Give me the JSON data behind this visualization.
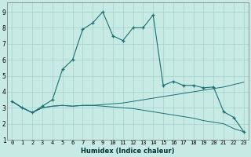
{
  "xlabel": "Humidex (Indice chaleur)",
  "background_color": "#c8eae5",
  "grid_color": "#a8d5d0",
  "line_color": "#1a7070",
  "xlim": [
    -0.5,
    23.5
  ],
  "ylim": [
    1,
    9.6
  ],
  "xticks": [
    0,
    1,
    2,
    3,
    4,
    5,
    6,
    7,
    8,
    9,
    10,
    11,
    12,
    13,
    14,
    15,
    16,
    17,
    18,
    19,
    20,
    21,
    22,
    23
  ],
  "yticks": [
    1,
    2,
    3,
    4,
    5,
    6,
    7,
    8,
    9
  ],
  "main_x": [
    0,
    1,
    2,
    3,
    4,
    5,
    6,
    7,
    8,
    9,
    10,
    11,
    12,
    13,
    14,
    15,
    16,
    17,
    18,
    19,
    20,
    21,
    22,
    23
  ],
  "main_y": [
    3.4,
    3.0,
    2.7,
    3.1,
    3.5,
    5.4,
    6.0,
    7.9,
    8.3,
    9.0,
    7.5,
    7.2,
    8.0,
    8.0,
    8.8,
    4.4,
    4.65,
    4.4,
    4.4,
    4.25,
    4.3,
    2.75,
    2.4,
    1.5
  ],
  "line_up_x": [
    0,
    1,
    2,
    3,
    4,
    5,
    6,
    7,
    8,
    9,
    10,
    11,
    12,
    13,
    14,
    15,
    16,
    17,
    18,
    19,
    20,
    21,
    22,
    23
  ],
  "line_up_y": [
    3.4,
    3.0,
    2.7,
    3.0,
    3.1,
    3.15,
    3.1,
    3.15,
    3.15,
    3.2,
    3.25,
    3.3,
    3.4,
    3.5,
    3.6,
    3.7,
    3.8,
    3.9,
    4.0,
    4.1,
    4.2,
    4.3,
    4.45,
    4.6
  ],
  "line_down_x": [
    0,
    1,
    2,
    3,
    4,
    5,
    6,
    7,
    8,
    9,
    10,
    11,
    12,
    13,
    14,
    15,
    16,
    17,
    18,
    19,
    20,
    21,
    22,
    23
  ],
  "line_down_y": [
    3.4,
    3.0,
    2.7,
    3.0,
    3.1,
    3.15,
    3.1,
    3.15,
    3.15,
    3.1,
    3.05,
    3.0,
    2.95,
    2.85,
    2.75,
    2.65,
    2.55,
    2.45,
    2.35,
    2.2,
    2.1,
    2.0,
    1.7,
    1.5
  ]
}
